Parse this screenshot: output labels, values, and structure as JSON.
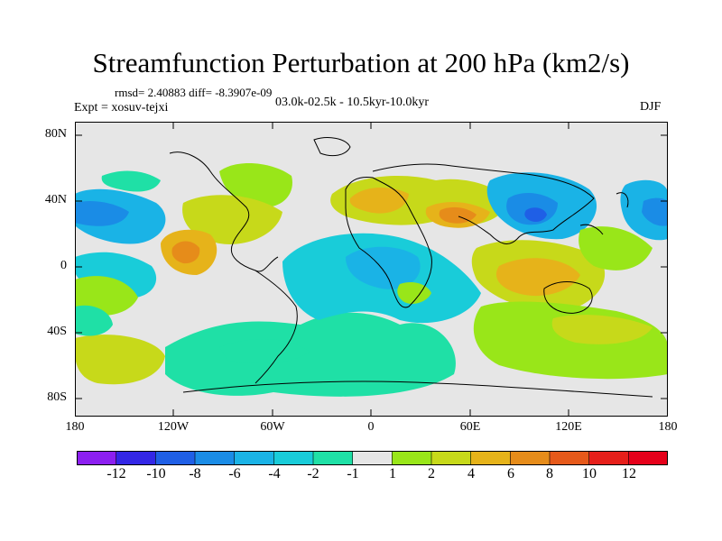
{
  "title": "Streamfunction Perturbation at 200 hPa (km2/s)",
  "rmsd_text": "rmsd= 2.40883 diff= -8.3907e-09",
  "experiment_text": "Expt = xosuv-tejxi",
  "period_text": "03.0k-02.5k - 10.5kyr-10.0kyr",
  "season_text": "DJF",
  "lat_labels": [
    "80N",
    "40N",
    "0",
    "40S",
    "80S"
  ],
  "lon_labels": [
    "180",
    "120W",
    "60W",
    "0",
    "60E",
    "120E",
    "180"
  ],
  "colorbar": {
    "labels": [
      "-12",
      "-10",
      "-8",
      "-6",
      "-4",
      "-2",
      "-1",
      "1",
      "2",
      "4",
      "6",
      "8",
      "10",
      "12"
    ],
    "colors": [
      "#8c1ff0",
      "#3326e6",
      "#1f5fe6",
      "#1a8ce6",
      "#1ab3e6",
      "#19ccd9",
      "#1fe0a6",
      "#e6e6e6",
      "#99e619",
      "#c7d91a",
      "#e6b31a",
      "#e68c1a",
      "#e6591a",
      "#e61f1a",
      "#e6001a"
    ]
  }
}
